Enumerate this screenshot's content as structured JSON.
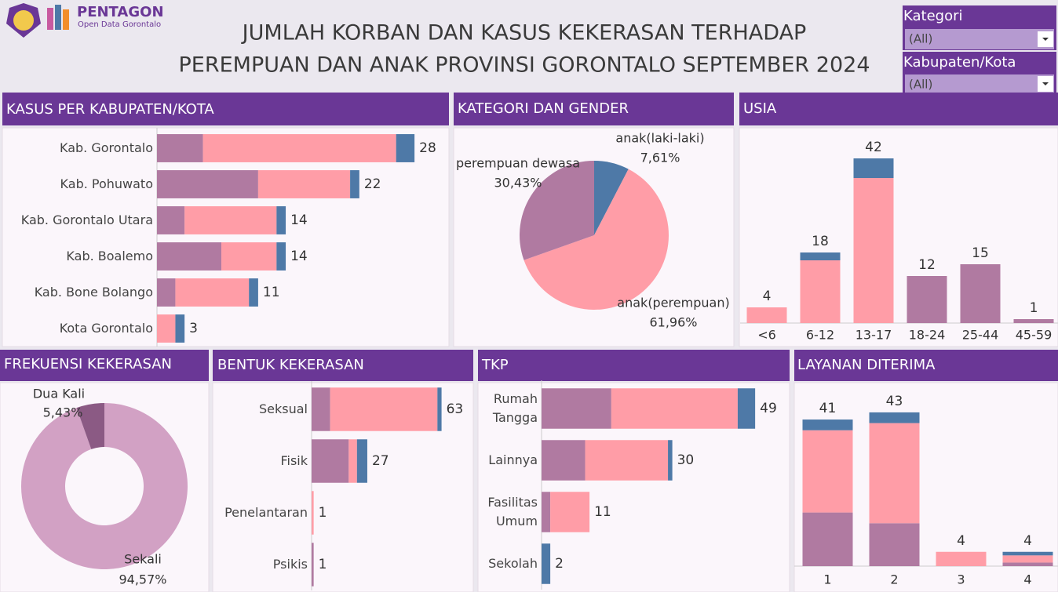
{
  "header": {
    "logo_title": "PENTAGON",
    "logo_subtitle": "Open Data Gorontalo",
    "title_lines": [
      "JUMLAH KORBAN DAN KASUS KEKERASAN TERHADAP",
      "PEREMPUAN DAN ANAK PROVINSI GORONTALO SEPTEMBER 2024"
    ]
  },
  "filters": [
    {
      "label": "Kategori",
      "value": "(All)"
    },
    {
      "label": "Kabupaten/Kota",
      "value": "(All)"
    }
  ],
  "chart_data": [
    {
      "type": "hbar",
      "title": "KASUS PER KABUPATEN/KOTA",
      "categories": [
        "Kab. Gorontalo",
        "Kab. Pohuwato",
        "Kab. Gorontalo Utara",
        "Kab. Boalemo",
        "Kab. Bone Bolango",
        "Kota Gorontalo"
      ],
      "series": [
        {
          "color": "#b07aa1",
          "values": [
            5,
            11,
            3,
            7,
            2,
            0
          ]
        },
        {
          "color": "#ff9da7",
          "values": [
            21,
            10,
            10,
            6,
            8,
            2
          ]
        },
        {
          "color": "#4e79a7",
          "values": [
            2,
            1,
            1,
            1,
            1,
            1
          ]
        }
      ],
      "totals": [
        28,
        22,
        14,
        14,
        11,
        3
      ],
      "xlim": [
        0,
        32
      ]
    },
    {
      "type": "pie",
      "title": "KATEGORI DAN GENDER",
      "categories": [
        "anak(laki-laki)",
        "anak(perempuan)",
        "perempuan dewasa"
      ],
      "values": [
        7.61,
        61.96,
        30.43
      ],
      "value_labels": [
        "7,61%",
        "61,96%",
        "30,43%"
      ],
      "colors": [
        "#4e79a7",
        "#ff9da7",
        "#b07aa1"
      ]
    },
    {
      "type": "vbar",
      "title": "USIA",
      "categories": [
        "<6",
        "6-12",
        "13-17",
        "18-24",
        "25-44",
        "45-59"
      ],
      "series": [
        {
          "color": "#b07aa1",
          "values": [
            0,
            0,
            0,
            12,
            15,
            1
          ]
        },
        {
          "color": "#ff9da7",
          "values": [
            4,
            16,
            37,
            0,
            0,
            0
          ]
        },
        {
          "color": "#4e79a7",
          "values": [
            0,
            2,
            5,
            0,
            0,
            0
          ]
        }
      ],
      "totals": [
        4,
        18,
        42,
        12,
        15,
        1
      ],
      "ylim": [
        0,
        49
      ]
    },
    {
      "type": "donut",
      "title": "FREKUENSI KEKERASAN",
      "categories": [
        "Sekali",
        "Dua Kali"
      ],
      "values": [
        94.57,
        5.43
      ],
      "value_labels": [
        "94,57%",
        "5,43%"
      ],
      "colors": [
        "#d2a1c4",
        "#8b5a84"
      ]
    },
    {
      "type": "hbar",
      "title": "BENTUK KEKERASAN",
      "categories": [
        "Seksual",
        "Fisik",
        "Penelantaran",
        "Psikis"
      ],
      "series": [
        {
          "color": "#b07aa1",
          "values": [
            9,
            18,
            0,
            1
          ]
        },
        {
          "color": "#ff9da7",
          "values": [
            52,
            4,
            1,
            0
          ]
        },
        {
          "color": "#4e79a7",
          "values": [
            2,
            5,
            0,
            0
          ]
        }
      ],
      "totals": [
        63,
        27,
        1,
        1
      ],
      "xlim": [
        0,
        78
      ]
    },
    {
      "type": "hbar",
      "title": "TKP",
      "categories": [
        "Rumah Tangga",
        "Lainnya",
        "Fasilitas Umum",
        "Sekolah"
      ],
      "series": [
        {
          "color": "#b07aa1",
          "values": [
            16,
            10,
            2,
            0
          ]
        },
        {
          "color": "#ff9da7",
          "values": [
            29,
            19,
            9,
            0
          ]
        },
        {
          "color": "#4e79a7",
          "values": [
            4,
            1,
            0,
            2
          ]
        }
      ],
      "totals": [
        49,
        30,
        11,
        2
      ],
      "xlim": [
        0,
        56
      ]
    },
    {
      "type": "vbar",
      "title": "LAYANAN DITERIMA",
      "categories": [
        "1",
        "2",
        "3",
        "4"
      ],
      "series": [
        {
          "color": "#b07aa1",
          "values": [
            15,
            12,
            0,
            1
          ]
        },
        {
          "color": "#ff9da7",
          "values": [
            23,
            28,
            4,
            2
          ]
        },
        {
          "color": "#4e79a7",
          "values": [
            3,
            3,
            0,
            1
          ]
        }
      ],
      "totals": [
        41,
        43,
        4,
        4
      ],
      "ylim": [
        0,
        50
      ]
    }
  ]
}
